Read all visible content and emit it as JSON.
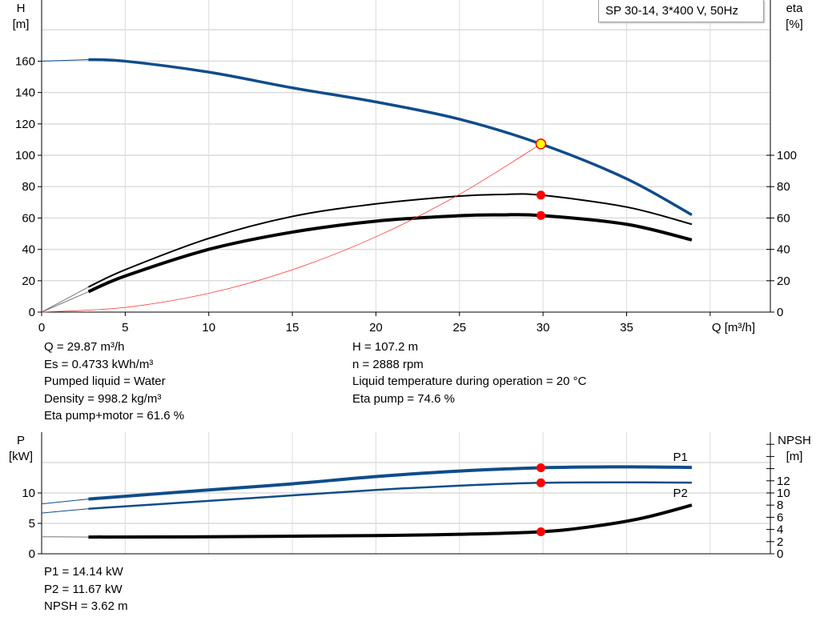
{
  "title": "SP 30-14, 3*400 V, 50Hz",
  "chart_data": [
    {
      "type": "line",
      "xlabel": "Q [m³/h]",
      "ylabel_left": [
        "H",
        "[m]"
      ],
      "ylabel_right": [
        "eta",
        "[%]"
      ],
      "xlim": [
        0,
        43.6
      ],
      "ylim_left": [
        0,
        199
      ],
      "ylim_right": [
        0,
        199
      ],
      "x_ticks": [
        0,
        5,
        10,
        15,
        20,
        25,
        30,
        35
      ],
      "y_ticks_left": [
        0,
        20,
        40,
        60,
        80,
        100,
        120,
        140,
        160
      ],
      "y_ticks_right": [
        0,
        20,
        40,
        60,
        80,
        100
      ],
      "grid": true,
      "series": [
        {
          "id": "H",
          "axis": "left",
          "color": "#0f4c8a",
          "extrapolated": [
            [
              0,
              160
            ],
            [
              2.8,
              161
            ]
          ],
          "points": [
            [
              2.8,
              161
            ],
            [
              5,
              160
            ],
            [
              10,
              153
            ],
            [
              15,
              143
            ],
            [
              20,
              134
            ],
            [
              25,
              123
            ],
            [
              29.87,
              107.2
            ],
            [
              35,
              85
            ],
            [
              38.9,
              62
            ]
          ]
        },
        {
          "id": "eta-pump",
          "axis": "right",
          "color": "#000000",
          "extrapolated": [
            [
              0,
              0
            ],
            [
              2.8,
              16
            ]
          ],
          "points": [
            [
              2.8,
              16
            ],
            [
              5,
              27
            ],
            [
              10,
              47
            ],
            [
              15,
              61
            ],
            [
              20,
              69
            ],
            [
              25,
              74
            ],
            [
              27.5,
              75
            ],
            [
              29.87,
              74.6
            ],
            [
              35,
              67
            ],
            [
              38.9,
              56
            ]
          ]
        },
        {
          "id": "eta-pump-motor",
          "axis": "right",
          "color": "#000000",
          "extrapolated": [
            [
              0,
              0
            ],
            [
              2.8,
              13
            ]
          ],
          "points": [
            [
              2.8,
              13
            ],
            [
              5,
              23
            ],
            [
              10,
              40
            ],
            [
              15,
              51
            ],
            [
              20,
              58
            ],
            [
              25,
              61.5
            ],
            [
              27.5,
              62
            ],
            [
              29.87,
              61.6
            ],
            [
              35,
              56
            ],
            [
              38.9,
              46
            ]
          ]
        },
        {
          "id": "system-curve",
          "axis": "left",
          "color": "#ff3333",
          "points": [
            [
              0,
              0
            ],
            [
              5,
              3
            ],
            [
              10,
              12
            ],
            [
              15,
              27
            ],
            [
              20,
              48
            ],
            [
              25,
              75.1
            ],
            [
              29.87,
              107.2
            ]
          ]
        }
      ],
      "operating_points": [
        {
          "series": "H",
          "x": 29.87,
          "y": 107.2,
          "fill": "#ffff00",
          "stroke": "#ff0000"
        },
        {
          "series": "eta-pump",
          "x": 29.87,
          "y": 74.6,
          "fill": "#ff0000",
          "stroke": "#ff0000"
        },
        {
          "series": "eta-pump-motor",
          "x": 29.87,
          "y": 61.6,
          "fill": "#ff0000",
          "stroke": "#ff0000"
        }
      ]
    },
    {
      "type": "line",
      "ylabel_left": [
        "P",
        "[kW]"
      ],
      "ylabel_right": [
        "NPSH",
        "[m]"
      ],
      "xlim": [
        0,
        43.6
      ],
      "ylim_left": [
        0,
        20
      ],
      "ylim_right": [
        0,
        20
      ],
      "y_ticks_left": [
        0,
        5,
        10
      ],
      "y_ticks_right": [
        0,
        2,
        4,
        6,
        8,
        10,
        12
      ],
      "grid": true,
      "series": [
        {
          "id": "P1",
          "name": "P1",
          "axis": "left",
          "color": "#0f4c8a",
          "extrapolated": [
            [
              0,
              8.2
            ],
            [
              2.8,
              9.0
            ]
          ],
          "points": [
            [
              2.8,
              9.0
            ],
            [
              10,
              10.5
            ],
            [
              15,
              11.5
            ],
            [
              20,
              12.7
            ],
            [
              25,
              13.6
            ],
            [
              29.87,
              14.14
            ],
            [
              35,
              14.3
            ],
            [
              38.9,
              14.2
            ]
          ]
        },
        {
          "id": "P2",
          "name": "P2",
          "axis": "left",
          "color": "#0f4c8a",
          "extrapolated": [
            [
              0,
              6.7
            ],
            [
              2.8,
              7.4
            ]
          ],
          "points": [
            [
              2.8,
              7.4
            ],
            [
              10,
              8.7
            ],
            [
              15,
              9.6
            ],
            [
              20,
              10.5
            ],
            [
              25,
              11.2
            ],
            [
              29.87,
              11.67
            ],
            [
              35,
              11.75
            ],
            [
              38.9,
              11.7
            ]
          ]
        },
        {
          "id": "NPSH",
          "axis": "right",
          "color": "#000000",
          "extrapolated": [
            [
              0,
              2.8
            ],
            [
              2.8,
              2.75
            ]
          ],
          "points": [
            [
              2.8,
              2.75
            ],
            [
              10,
              2.8
            ],
            [
              20,
              3.0
            ],
            [
              25,
              3.2
            ],
            [
              29.87,
              3.62
            ],
            [
              33,
              4.5
            ],
            [
              36,
              5.9
            ],
            [
              38.9,
              8.0
            ]
          ]
        }
      ],
      "operating_points": [
        {
          "series": "P1",
          "x": 29.87,
          "y": 14.14,
          "fill": "#ff0000",
          "stroke": "#ff0000"
        },
        {
          "series": "P2",
          "x": 29.87,
          "y": 11.67,
          "fill": "#ff0000",
          "stroke": "#ff0000"
        },
        {
          "series": "NPSH",
          "x": 29.87,
          "y": 3.62,
          "fill": "#ff0000",
          "stroke": "#ff0000"
        }
      ]
    }
  ],
  "info_top_left": [
    "Q = 29.87 m³/h",
    "Es = 0.4733 kWh/m³",
    "Pumped liquid = Water",
    "Density = 998.2 kg/m³",
    "Eta pump+motor = 61.6 %"
  ],
  "info_top_right": [
    "H = 107.2 m",
    "n = 2888 rpm",
    "Liquid temperature during operation = 20 °C",
    "Eta pump = 74.6 %"
  ],
  "info_bottom": [
    "P1 = 14.14 kW",
    "P2 = 11.67 kW",
    "NPSH = 3.62 m"
  ]
}
